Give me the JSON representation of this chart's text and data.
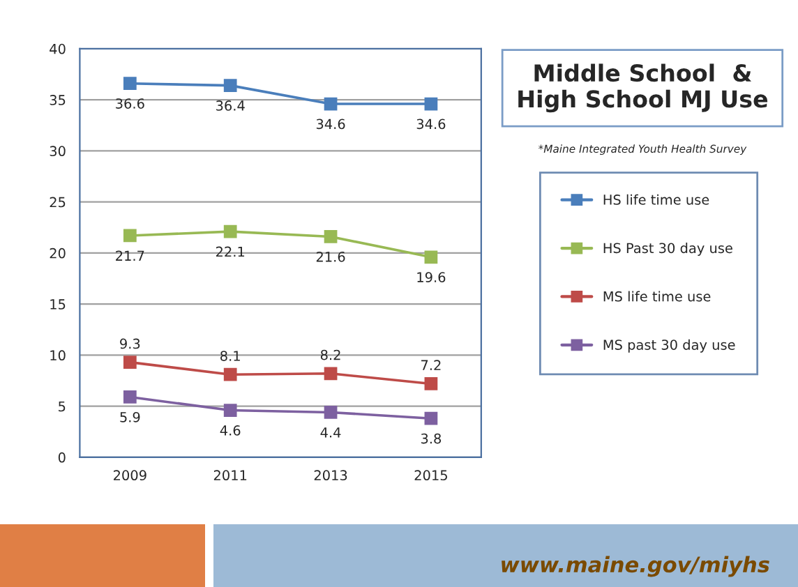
{
  "chart_data": {
    "type": "line",
    "title": "Middle School  &\nHigh School MJ Use",
    "categories": [
      "2009",
      "2011",
      "2013",
      "2015"
    ],
    "series": [
      {
        "name": "HS life time use",
        "color": "#4a7ebb",
        "values": [
          36.6,
          36.4,
          34.6,
          34.6
        ]
      },
      {
        "name": "HS Past 30 day use",
        "color": "#98b954",
        "values": [
          21.7,
          22.1,
          21.6,
          19.6
        ]
      },
      {
        "name": "MS life time use",
        "color": "#be4b48",
        "values": [
          9.3,
          8.1,
          8.2,
          7.2
        ]
      },
      {
        "name": "MS past 30 day use",
        "color": "#7d60a0",
        "values": [
          5.9,
          4.6,
          4.4,
          3.8
        ]
      }
    ],
    "ylim": [
      0,
      40
    ],
    "yticks": [
      0,
      5,
      10,
      15,
      20,
      25,
      30,
      35,
      40
    ],
    "grid": "y",
    "legend": "right",
    "marker": "square",
    "line_style": "solid",
    "data_labels": true,
    "annotations": [
      "*Maine Integrated Youth Health Survey",
      "www.maine.gov/miyhs"
    ]
  }
}
